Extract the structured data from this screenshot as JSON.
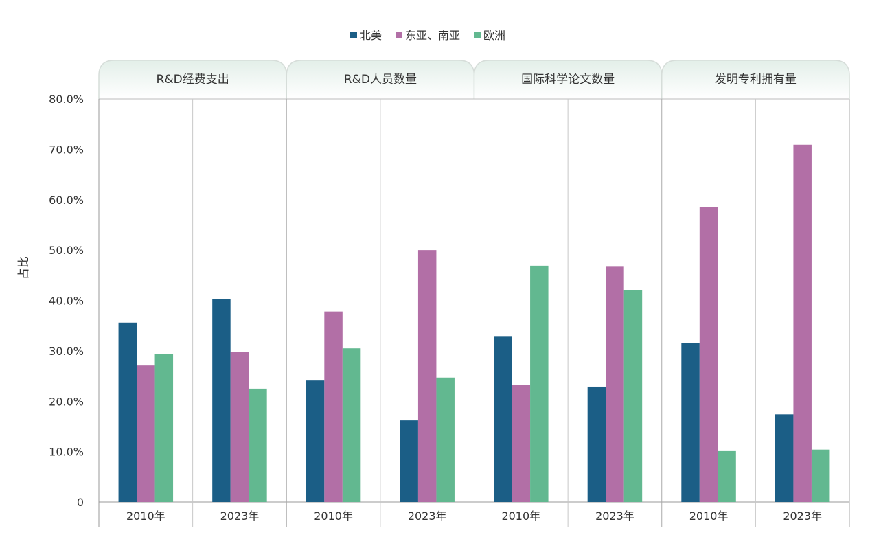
{
  "chart_data": {
    "type": "bar",
    "title": "",
    "ylabel": "占比",
    "xlabel": "",
    "ylim": [
      0,
      80
    ],
    "yticks": [
      "0",
      "10.0%",
      "20.0%",
      "30.0%",
      "40.0%",
      "50.0%",
      "60.0%",
      "70.0%",
      "80.0%"
    ],
    "legend_position": "top",
    "grid": false,
    "groups": [
      {
        "name": "R&D经费支出",
        "categories": [
          "2010年",
          "2023年"
        ]
      },
      {
        "name": "R&D人员数量",
        "categories": [
          "2010年",
          "2023年"
        ]
      },
      {
        "name": "国际科学论文数量",
        "categories": [
          "2010年",
          "2023年"
        ]
      },
      {
        "name": "发明专利拥有量",
        "categories": [
          "2010年",
          "2023年"
        ]
      }
    ],
    "series": [
      {
        "name": "北美",
        "color": "#1b5e86",
        "values": [
          35.6,
          40.3,
          24.1,
          16.2,
          32.8,
          22.9,
          31.6,
          17.4
        ]
      },
      {
        "name": "东亚、南亚",
        "color": "#b26fa6",
        "values": [
          27.1,
          29.8,
          37.8,
          50.0,
          23.2,
          46.7,
          58.5,
          70.9
        ]
      },
      {
        "name": "欧洲",
        "color": "#62b890",
        "values": [
          29.4,
          22.5,
          30.5,
          24.7,
          46.9,
          42.1,
          10.1,
          10.4
        ]
      }
    ]
  }
}
